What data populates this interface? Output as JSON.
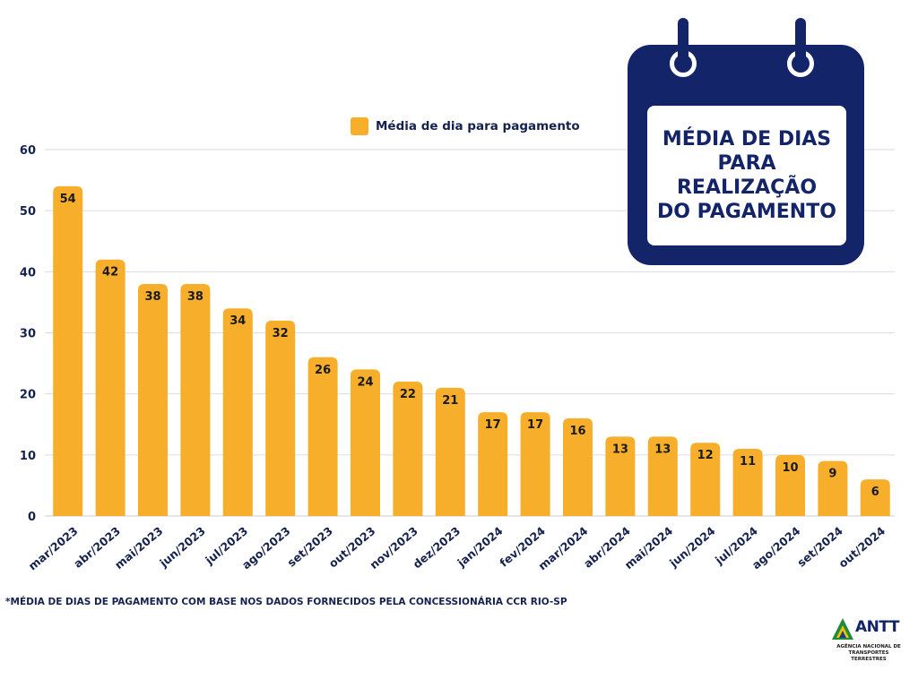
{
  "chart_data": {
    "type": "bar",
    "title": "MÉDIA DE DIAS PARA REALIZAÇÃO DO PAGAMENTO",
    "categories": [
      "mar/2023",
      "abr/2023",
      "mai/2023",
      "jun/2023",
      "jul/2023",
      "ago/2023",
      "set/2023",
      "out/2023",
      "nov/2023",
      "dez/2023",
      "jan/2024",
      "fev/2024",
      "mar/2024",
      "abr/2024",
      "mai/2024",
      "jun/2024",
      "jul/2024",
      "ago/2024",
      "set/2024",
      "out/2024"
    ],
    "series": [
      {
        "name": "Média de dia para pagamento",
        "values": [
          54,
          42,
          38,
          38,
          34,
          32,
          26,
          24,
          22,
          21,
          17,
          17,
          16,
          13,
          13,
          12,
          11,
          10,
          9,
          6
        ]
      }
    ],
    "yticks": [
      0,
      10,
      20,
      30,
      40,
      50,
      60
    ],
    "ylim": [
      0,
      60
    ],
    "xlabel": "",
    "ylabel": "",
    "grid": true,
    "legend_position": "top-center",
    "colors": {
      "bar": "#f7ae2b",
      "grid": "#d9dbe6",
      "text": "#15224f"
    }
  },
  "title_card": {
    "text": "MÉDIA DE DIAS PARA REALIZAÇÃO DO PAGAMENTO",
    "color": "#132468"
  },
  "footnote": "*MÉDIA DE DIAS DE PAGAMENTO COM BASE NOS DADOS FORNECIDOS PELA CONCESSIONÁRIA CCR RIO-SP",
  "logo": {
    "name": "ANTT",
    "subtitle": "AGÊNCIA NACIONAL DE TRANSPORTES TERRESTRES"
  }
}
